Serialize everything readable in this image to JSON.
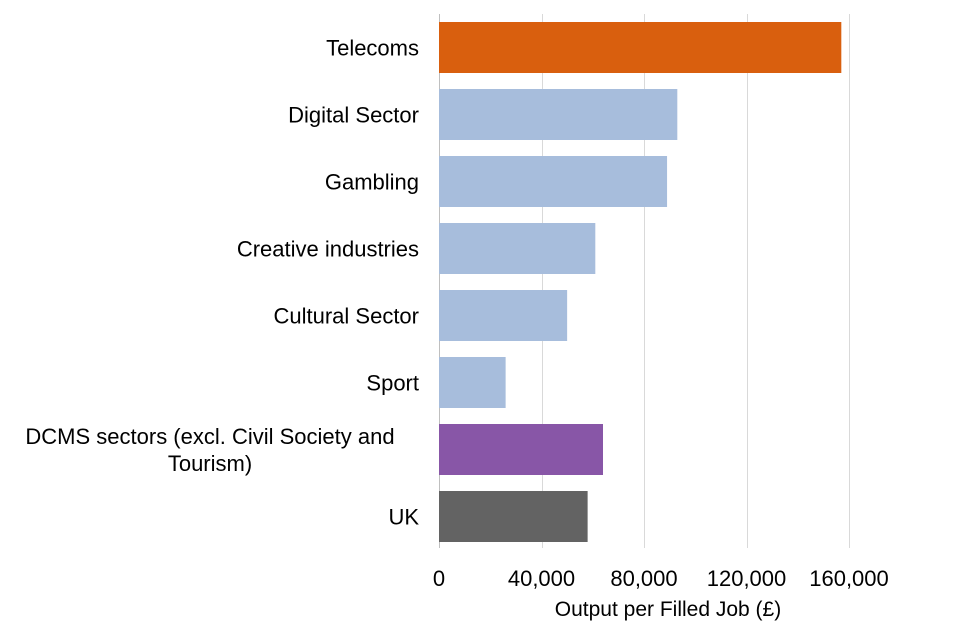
{
  "chart_data": {
    "type": "bar",
    "orientation": "horizontal",
    "title": "",
    "xlabel": "Output per Filled Job (£)",
    "ylabel": "",
    "xlim": [
      0,
      160000
    ],
    "xticks": [
      0,
      40000,
      80000,
      120000,
      160000
    ],
    "xtick_labels": [
      "0",
      "40,000",
      "80,000",
      "120,000",
      "160,000"
    ],
    "grid": true,
    "legend": "none",
    "categories": [
      "Telecoms",
      "Digital Sector",
      "Gambling",
      "Creative industries",
      "Cultural Sector",
      "Sport",
      "DCMS sectors (excl. Civil Society and Tourism)",
      "UK"
    ],
    "category_label_lines": [
      [
        "Telecoms"
      ],
      [
        "Digital Sector"
      ],
      [
        "Gambling"
      ],
      [
        "Creative industries"
      ],
      [
        "Cultural Sector"
      ],
      [
        "Sport"
      ],
      [
        "DCMS sectors (excl. Civil Society and",
        "Tourism)"
      ],
      [
        "UK"
      ]
    ],
    "values": [
      157000,
      93000,
      89000,
      61000,
      50000,
      26000,
      64000,
      58000
    ],
    "colors": [
      "#D95F0E",
      "#A7BDDC",
      "#A7BDDC",
      "#A7BDDC",
      "#A7BDDC",
      "#A7BDDC",
      "#8856A7",
      "#636363"
    ]
  }
}
